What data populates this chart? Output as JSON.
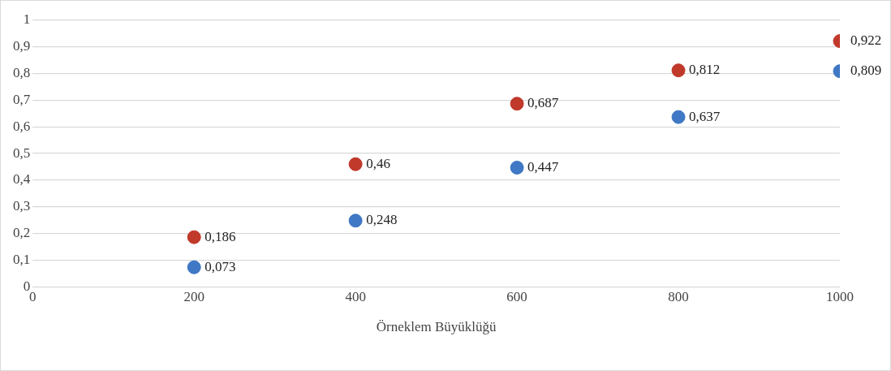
{
  "chart_data": {
    "type": "scatter",
    "xlabel": "Örneklem Büyüklüğü",
    "x": [
      200,
      400,
      600,
      800,
      1000
    ],
    "series": [
      {
        "color": "#c0392b",
        "values": [
          0.186,
          0.46,
          0.687,
          0.812,
          0.922
        ],
        "value_labels": [
          "0,186",
          "0,46",
          "0,687",
          "0,812",
          "0,922"
        ]
      },
      {
        "color": "#3f78c4",
        "values": [
          0.073,
          0.248,
          0.447,
          0.637,
          0.809
        ],
        "value_labels": [
          "0,073",
          "0,248",
          "0,447",
          "0,637",
          "0,809"
        ]
      }
    ],
    "xlim": [
      0,
      1000
    ],
    "xticks": [
      0,
      200,
      400,
      600,
      800,
      1000
    ],
    "ylim": [
      0,
      1
    ],
    "yticks": [
      0,
      {
        "value": 0.1,
        "label": "0,1"
      },
      {
        "value": 0.2,
        "label": "0,2"
      },
      {
        "value": 0.3,
        "label": "0,3"
      },
      {
        "value": 0.4,
        "label": "0,4"
      },
      {
        "value": 0.5,
        "label": "0,5"
      },
      {
        "value": 0.6,
        "label": "0,6"
      },
      {
        "value": 0.7,
        "label": "0,7"
      },
      {
        "value": 0.8,
        "label": "0,8"
      },
      {
        "value": 0.9,
        "label": "0,9"
      },
      1
    ],
    "grid": "y",
    "legend": false,
    "marker": "circle"
  }
}
